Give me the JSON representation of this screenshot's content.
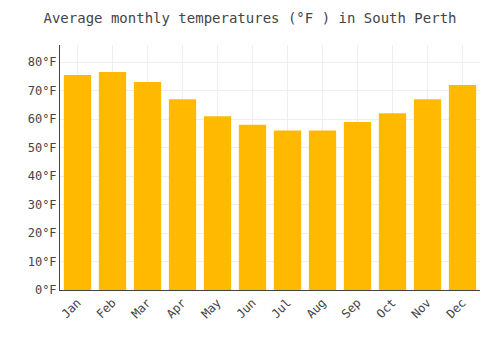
{
  "chart_data": {
    "type": "bar",
    "title": "Average monthly temperatures (°F ) in South Perth",
    "categories": [
      "Jan",
      "Feb",
      "Mar",
      "Apr",
      "May",
      "Jun",
      "Jul",
      "Aug",
      "Sep",
      "Oct",
      "Nov",
      "Dec"
    ],
    "values": [
      75.5,
      76.5,
      73,
      67,
      61,
      58,
      56,
      56,
      59,
      62,
      67,
      72
    ],
    "color": "#FFBA00",
    "ylim": [
      0,
      86
    ],
    "yticks": [
      {
        "value": 0,
        "label": "0°F"
      },
      {
        "value": 10,
        "label": "10°F"
      },
      {
        "value": 20,
        "label": "20°F"
      },
      {
        "value": 30,
        "label": "30°F"
      },
      {
        "value": 40,
        "label": "40°F"
      },
      {
        "value": 50,
        "label": "50°F"
      },
      {
        "value": 60,
        "label": "60°F"
      },
      {
        "value": 70,
        "label": "70°F"
      },
      {
        "value": 80,
        "label": "80°F"
      }
    ],
    "grid": true
  }
}
